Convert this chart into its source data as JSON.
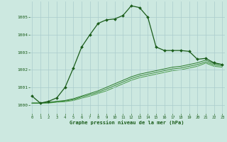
{
  "title": "Graphe pression niveau de la mer (hPa)",
  "background_color": "#cce8e0",
  "grid_color": "#aacccc",
  "line_color_main": "#1a5c1a",
  "line_color_flat1": "#2a7a2a",
  "line_color_flat2": "#3a8a3a",
  "line_color_flat3": "#4a9a4a",
  "x_ticks": [
    0,
    1,
    2,
    3,
    4,
    5,
    6,
    7,
    8,
    9,
    10,
    11,
    12,
    13,
    14,
    15,
    16,
    17,
    18,
    19,
    20,
    21,
    22,
    23
  ],
  "y_ticks": [
    1000,
    1001,
    1002,
    1003,
    1004,
    1005
  ],
  "ylim": [
    999.5,
    1005.9
  ],
  "xlim": [
    -0.3,
    23.3
  ],
  "series_main": [
    1000.5,
    1000.1,
    1000.2,
    1000.4,
    1001.0,
    1002.1,
    1003.3,
    1004.0,
    1004.65,
    1004.85,
    1004.9,
    1005.1,
    1005.65,
    1005.55,
    1005.0,
    1003.3,
    1003.1,
    1003.1,
    1003.1,
    1003.05,
    1002.6,
    1002.65,
    1002.4,
    1002.3
  ],
  "series_flat1": [
    1000.1,
    1000.1,
    1000.15,
    1000.2,
    1000.25,
    1000.35,
    1000.5,
    1000.65,
    1000.8,
    1001.0,
    1001.2,
    1001.4,
    1001.6,
    1001.75,
    1001.85,
    1001.95,
    1002.05,
    1002.15,
    1002.2,
    1002.3,
    1002.4,
    1002.55,
    1002.35,
    1002.3
  ],
  "series_flat2": [
    1000.1,
    1000.1,
    1000.12,
    1000.18,
    1000.22,
    1000.3,
    1000.45,
    1000.58,
    1000.72,
    1000.9,
    1001.1,
    1001.3,
    1001.5,
    1001.65,
    1001.75,
    1001.85,
    1001.95,
    1002.05,
    1002.1,
    1002.2,
    1002.3,
    1002.45,
    1002.28,
    1002.22
  ],
  "series_flat3": [
    1000.1,
    1000.1,
    1000.1,
    1000.15,
    1000.18,
    1000.25,
    1000.38,
    1000.5,
    1000.65,
    1000.8,
    1001.0,
    1001.2,
    1001.4,
    1001.55,
    1001.65,
    1001.75,
    1001.85,
    1001.95,
    1002.0,
    1002.1,
    1002.2,
    1002.38,
    1002.2,
    1002.15
  ]
}
